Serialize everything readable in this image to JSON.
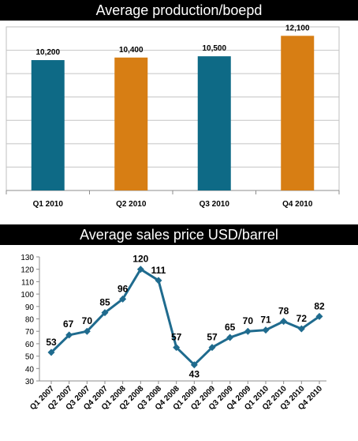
{
  "chart_data": [
    {
      "type": "bar",
      "title": "Average production/boepd",
      "categories": [
        "Q1 2010",
        "Q2 2010",
        "Q3 2010",
        "Q4 2010"
      ],
      "values": [
        10200,
        10400,
        10500,
        12100
      ],
      "value_labels": [
        "10,200",
        "10,400",
        "10,500",
        "12,100"
      ],
      "bar_colors": [
        "#0e6a86",
        "#d77e14",
        "#0e6a86",
        "#d77e14"
      ],
      "ylim": [
        0,
        12800
      ],
      "grid": true,
      "xlabel": "",
      "ylabel": ""
    },
    {
      "type": "line",
      "title": "Average sales price USD/barrel",
      "categories": [
        "Q1 2007",
        "Q2 2007",
        "Q3 2007",
        "Q4 2007",
        "Q1 2008",
        "Q2 2008",
        "Q3 2008",
        "Q4 2008",
        "Q1 2009",
        "Q2 2009",
        "Q3 2009",
        "Q4 2009",
        "Q1 2010",
        "Q2 2010",
        "Q3 2010",
        "Q4 2010"
      ],
      "values": [
        53,
        67,
        70,
        85,
        96,
        120,
        111,
        57,
        43,
        57,
        65,
        70,
        71,
        78,
        72,
        82
      ],
      "value_labels": [
        "53",
        "",
        "70",
        "85",
        "96",
        "120",
        "111",
        "57",
        "43",
        "57",
        "65",
        "70",
        "71",
        "78",
        "72",
        "82"
      ],
      "extra_labels": [
        {
          "text": "67",
          "index": 1
        }
      ],
      "line_color": "#1f6b8e",
      "ylim": [
        30,
        130
      ],
      "yticks": [
        30,
        40,
        50,
        60,
        70,
        80,
        90,
        100,
        110,
        120,
        130
      ],
      "grid": false,
      "xlabel": "",
      "ylabel": ""
    }
  ]
}
